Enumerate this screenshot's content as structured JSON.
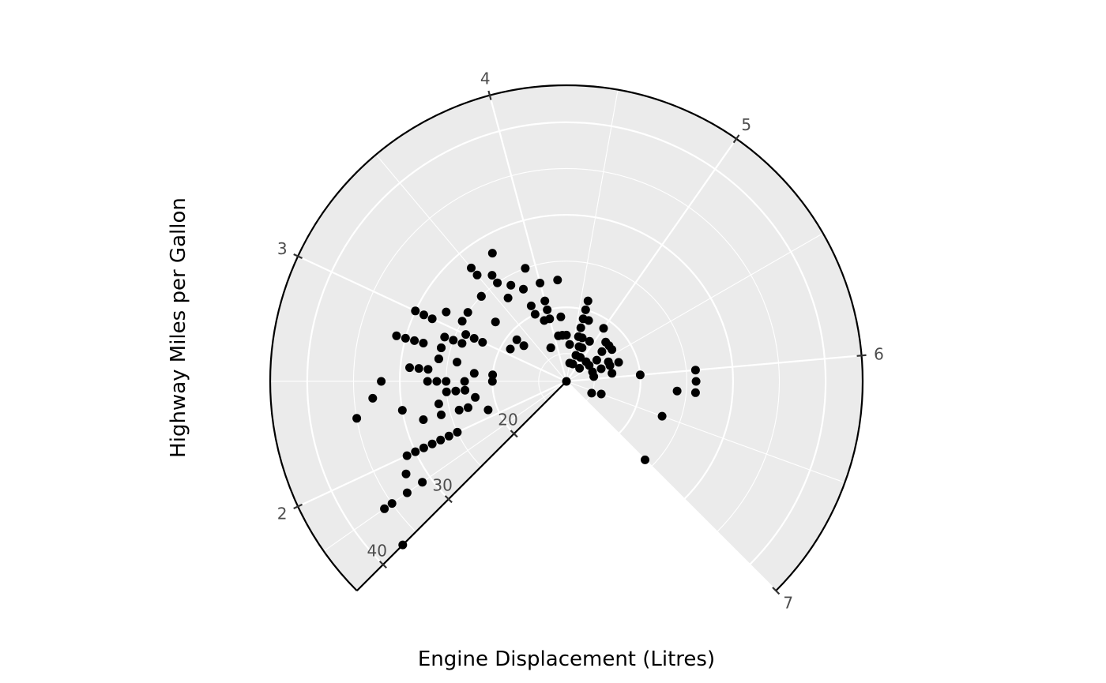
{
  "chart_data": {
    "type": "scatter",
    "coord": "polar-partial",
    "xlabel": "Engine Displacement (Litres)",
    "ylabel": "Highway Miles per Gallon",
    "theta_var": "Engine Displacement (Litres)",
    "r_var": "Highway Miles per Gallon",
    "theta_range": [
      1.6,
      7.0
    ],
    "r_range": [
      12,
      44
    ],
    "theta_ticks": [
      2,
      3,
      4,
      5,
      6,
      7
    ],
    "r_ticks": [
      20,
      30,
      40
    ],
    "grid": true,
    "panel_color": "#ebebeb",
    "grid_color": "#ffffff",
    "point_color": "#000000",
    "points": [
      [
        1.6,
        37
      ],
      [
        1.8,
        36
      ],
      [
        1.8,
        35
      ],
      [
        1.8,
        33
      ],
      [
        1.9,
        32
      ],
      [
        1.8,
        31
      ],
      [
        2.0,
        31
      ],
      [
        2.0,
        30
      ],
      [
        2.0,
        29
      ],
      [
        2.0,
        28
      ],
      [
        2.0,
        27
      ],
      [
        2.0,
        26
      ],
      [
        2.0,
        25
      ],
      [
        2.2,
        26
      ],
      [
        2.2,
        28
      ],
      [
        2.3,
        30
      ],
      [
        2.3,
        26
      ],
      [
        2.2,
        24
      ],
      [
        2.2,
        23
      ],
      [
        2.1,
        21
      ],
      [
        2.3,
        22
      ],
      [
        2.5,
        20
      ],
      [
        2.4,
        33
      ],
      [
        2.3,
        35
      ],
      [
        2.6,
        29
      ],
      [
        2.6,
        28
      ],
      [
        2.6,
        27
      ],
      [
        2.5,
        27
      ],
      [
        2.5,
        26
      ],
      [
        2.5,
        25
      ],
      [
        2.4,
        25
      ],
      [
        2.4,
        24
      ],
      [
        2.4,
        23
      ],
      [
        2.5,
        23
      ],
      [
        2.6,
        22
      ],
      [
        2.7,
        24
      ],
      [
        2.7,
        26
      ],
      [
        2.7,
        26
      ],
      [
        2.5,
        32
      ],
      [
        2.6,
        20
      ],
      [
        2.8,
        31
      ],
      [
        2.8,
        30
      ],
      [
        2.8,
        29
      ],
      [
        2.8,
        28
      ],
      [
        2.8,
        26
      ],
      [
        2.8,
        26
      ],
      [
        2.9,
        26
      ],
      [
        3.0,
        28
      ],
      [
        3.0,
        29
      ],
      [
        3.0,
        30
      ],
      [
        2.9,
        25
      ],
      [
        2.9,
        24
      ],
      [
        3.1,
        27
      ],
      [
        3.1,
        25
      ],
      [
        3.0,
        24
      ],
      [
        3.0,
        23
      ],
      [
        3.0,
        22
      ],
      [
        3.2,
        25
      ],
      [
        3.1,
        19
      ],
      [
        3.3,
        22
      ],
      [
        3.3,
        19
      ],
      [
        3.3,
        18
      ],
      [
        3.4,
        25
      ],
      [
        3.4,
        25
      ],
      [
        3.5,
        28
      ],
      [
        3.5,
        27
      ],
      [
        3.6,
        26
      ],
      [
        3.6,
        25
      ],
      [
        3.7,
        24
      ],
      [
        3.8,
        23
      ],
      [
        3.6,
        23
      ],
      [
        3.8,
        21
      ],
      [
        3.8,
        20
      ],
      [
        3.9,
        19
      ],
      [
        3.8,
        16
      ],
      [
        3.8,
        16
      ],
      [
        3.7,
        28
      ],
      [
        3.9,
        25
      ],
      [
        4.0,
        23
      ],
      [
        4.0,
        21
      ],
      [
        4.0,
        20
      ],
      [
        4.0,
        19
      ],
      [
        4.1,
        17
      ],
      [
        4.2,
        17
      ],
      [
        4.2,
        19
      ],
      [
        4.2,
        17
      ],
      [
        4.3,
        17
      ],
      [
        4.2,
        23
      ],
      [
        4.4,
        16
      ],
      [
        4.5,
        14
      ],
      [
        4.6,
        17
      ],
      [
        4.6,
        18
      ],
      [
        4.6,
        19
      ],
      [
        4.6,
        20
      ],
      [
        4.6,
        21
      ],
      [
        4.7,
        17
      ],
      [
        4.7,
        16
      ],
      [
        4.7,
        19
      ],
      [
        4.7,
        15
      ],
      [
        4.7,
        14
      ],
      [
        4.8,
        16
      ],
      [
        4.9,
        15
      ],
      [
        4.8,
        12
      ],
      [
        4.9,
        17
      ],
      [
        5.2,
        14
      ],
      [
        5.2,
        15
      ],
      [
        5.4,
        16
      ],
      [
        5.4,
        15
      ],
      [
        5.3,
        17
      ],
      [
        5.3,
        18
      ],
      [
        5.2,
        18
      ],
      [
        5.0,
        19
      ],
      [
        5.4,
        18
      ],
      [
        5.6,
        17
      ],
      [
        5.7,
        18
      ],
      [
        5.7,
        17
      ],
      [
        5.9,
        17
      ],
      [
        5.7,
        16
      ],
      [
        5.9,
        15
      ],
      [
        5.7,
        15
      ],
      [
        6.2,
        24
      ],
      [
        6.5,
        23
      ],
      [
        6.0,
        20
      ],
      [
        6.0,
        26
      ],
      [
        6.2,
        26
      ],
      [
        6.1,
        26
      ],
      [
        6.5,
        16
      ],
      [
        6.6,
        15
      ],
      [
        7.0,
        24
      ]
    ]
  }
}
